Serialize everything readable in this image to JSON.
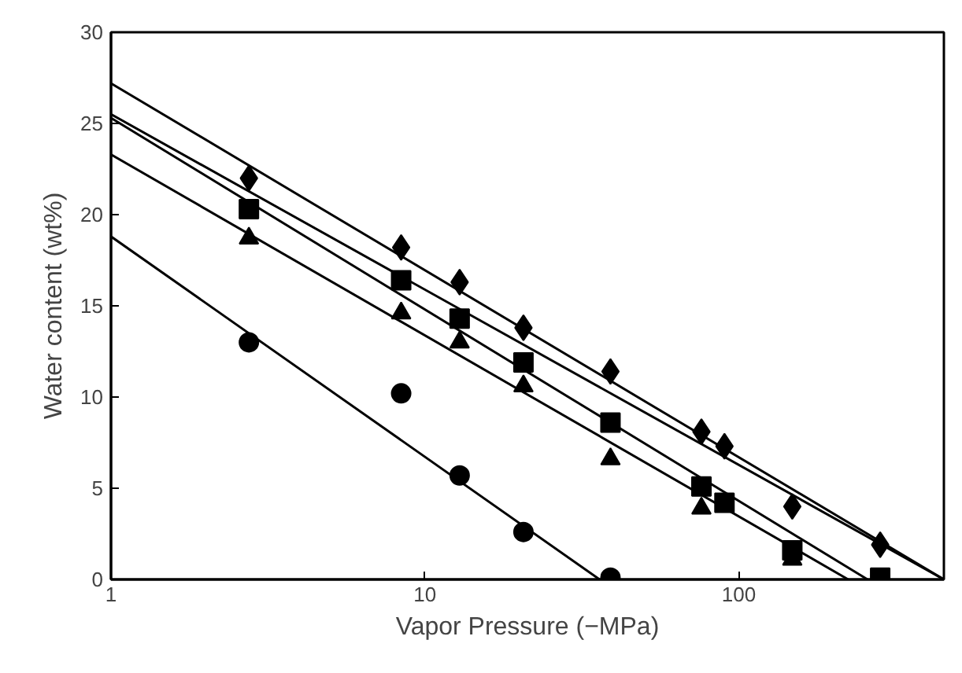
{
  "chart_data": {
    "type": "scatter",
    "xlabel": "Vapor Pressure (−MPa)",
    "ylabel": "Water content (wt%)",
    "log": "x",
    "xlim": [
      1,
      450
    ],
    "ylim": [
      0,
      30
    ],
    "xticks": [
      1,
      10,
      100
    ],
    "yticks": [
      0,
      5,
      10,
      15,
      20,
      25,
      30
    ],
    "grid": false,
    "series": [
      {
        "marker": "diamond",
        "color": "#000000",
        "x": [
          2.75,
          8.4,
          12.9,
          20.6,
          39,
          76,
          90,
          148,
          282
        ],
        "values": [
          22.0,
          18.2,
          16.3,
          13.8,
          11.4,
          8.1,
          7.3,
          4.0,
          1.9
        ]
      },
      {
        "marker": "square",
        "color": "#000000",
        "x": [
          2.75,
          8.4,
          12.9,
          20.6,
          39,
          76,
          90,
          148,
          282
        ],
        "values": [
          20.3,
          16.4,
          14.3,
          11.9,
          8.6,
          5.1,
          4.2,
          1.6,
          0.1
        ]
      },
      {
        "marker": "triangle",
        "color": "#000000",
        "x": [
          2.75,
          8.4,
          12.9,
          20.6,
          39,
          76,
          148
        ],
        "values": [
          18.7,
          14.6,
          13.0,
          10.6,
          6.6,
          3.9,
          1.1
        ]
      },
      {
        "marker": "circle",
        "color": "#000000",
        "x": [
          2.75,
          8.4,
          12.9,
          20.6,
          39
        ],
        "values": [
          13.0,
          10.2,
          5.7,
          2.6,
          0.1
        ]
      },
      {
        "type": "line",
        "line_style": "solid",
        "color": "#000000",
        "x": [
          1,
          450
        ],
        "values": [
          27.2,
          0
        ]
      },
      {
        "type": "line",
        "line_style": "solid",
        "color": "#000000",
        "x": [
          1,
          450
        ],
        "values": [
          25.5,
          0
        ]
      },
      {
        "type": "line",
        "line_style": "solid",
        "color": "#000000",
        "x": [
          1,
          257
        ],
        "values": [
          25.3,
          0
        ]
      },
      {
        "type": "line",
        "line_style": "solid",
        "color": "#000000",
        "x": [
          1,
          223
        ],
        "values": [
          23.3,
          0
        ]
      },
      {
        "type": "line",
        "line_style": "solid",
        "color": "#000000",
        "x": [
          1,
          36
        ],
        "values": [
          18.8,
          0
        ]
      }
    ]
  }
}
